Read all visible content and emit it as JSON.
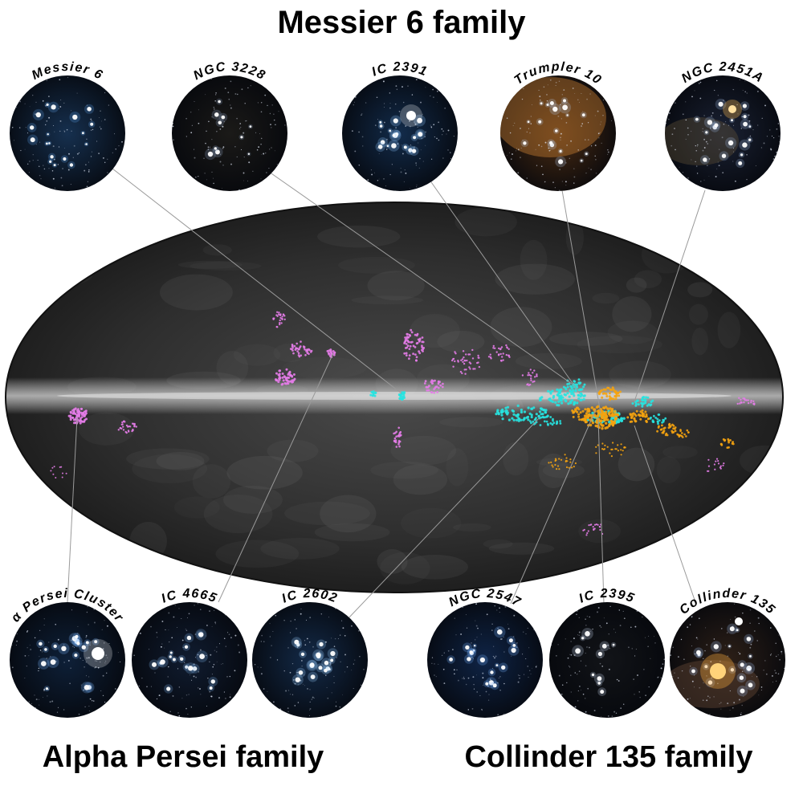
{
  "titles": {
    "top": "Messier 6 family",
    "bottom_left": "Alpha Persei family",
    "bottom_right": "Collinder 135 family"
  },
  "families": {
    "messier6": {
      "color": "#27e3e0"
    },
    "alpha_persei": {
      "color": "#e47ce8"
    },
    "collinder135": {
      "color": "#f5a30f"
    }
  },
  "clusters": [
    {
      "id": "messier-6",
      "label": "Messier 6",
      "family": "messier6",
      "tint": "#16304f",
      "glow": "#5aa0e8",
      "accent": ""
    },
    {
      "id": "ngc-3228",
      "label": "NGC 3228",
      "family": "messier6",
      "tint": "#1b1a18",
      "glow": "#8aa0c0",
      "accent": ""
    },
    {
      "id": "ic-2391",
      "label": "IC 2391",
      "family": "messier6",
      "tint": "#122b4a",
      "glow": "#8ec8ff",
      "accent": ""
    },
    {
      "id": "trumpler-10",
      "label": "Trumpler 10",
      "family": "messier6",
      "tint": "#4a2b12",
      "glow": "#b0c8e8",
      "accent": "#c07a30"
    },
    {
      "id": "ngc-2451a",
      "label": "NGC 2451A",
      "family": "messier6",
      "tint": "#1a2133",
      "glow": "#9ab8e0",
      "accent": "#e8b050"
    },
    {
      "id": "alpha-persei-cluster",
      "label": "α Persei Cluster",
      "family": "alpha_persei",
      "tint": "#0e2038",
      "glow": "#7ab8ff",
      "accent": "#ffffff"
    },
    {
      "id": "ic-4665",
      "label": "IC 4665",
      "family": "alpha_persei",
      "tint": "#101c30",
      "glow": "#7aaee8",
      "accent": ""
    },
    {
      "id": "ic-2602",
      "label": "IC 2602",
      "family": "alpha_persei",
      "tint": "#132a48",
      "glow": "#9cd0ff",
      "accent": ""
    },
    {
      "id": "ngc-2547",
      "label": "NGC 2547",
      "family": "collinder135",
      "tint": "#0f2446",
      "glow": "#78b4ff",
      "accent": ""
    },
    {
      "id": "ic-2395",
      "label": "IC 2395",
      "family": "collinder135",
      "tint": "#121418",
      "glow": "#c8d8f0",
      "accent": ""
    },
    {
      "id": "collinder-135",
      "label": "Collinder 135",
      "family": "collinder135",
      "tint": "#2c1f17",
      "glow": "#9ec0f0",
      "accent": "#ffb040"
    }
  ]
}
